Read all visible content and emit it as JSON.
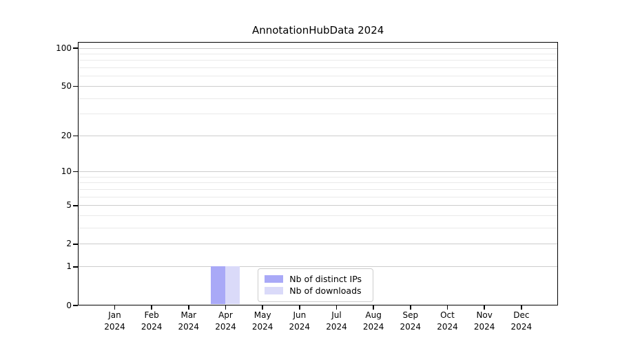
{
  "chart_data": {
    "type": "bar",
    "title": "AnnotationHubData 2024",
    "categories": [
      "Jan",
      "Feb",
      "Mar",
      "Apr",
      "May",
      "Jun",
      "Jul",
      "Aug",
      "Sep",
      "Oct",
      "Nov",
      "Dec"
    ],
    "x_year_label": "2024",
    "series": [
      {
        "name": "Nb of distinct IPs",
        "color": "#a9a9f7",
        "values": [
          0,
          0,
          0,
          1,
          0,
          0,
          0,
          0,
          0,
          0,
          0,
          0
        ]
      },
      {
        "name": "Nb of downloads",
        "color": "#dadaf9",
        "values": [
          0,
          0,
          0,
          1,
          0,
          0,
          0,
          0,
          0,
          0,
          0,
          0
        ]
      }
    ],
    "yscale": "log1p",
    "ylim": [
      0,
      112
    ],
    "yticks": [
      0,
      1,
      2,
      5,
      10,
      20,
      50,
      100
    ],
    "ytick_labels": [
      "0",
      "1",
      "2",
      "5",
      "10",
      "20",
      "50",
      "100"
    ],
    "minor_gridlines": [
      3,
      4,
      6,
      7,
      8,
      9,
      30,
      40,
      60,
      70,
      80,
      90
    ],
    "grid": "horizontal-only",
    "legend": {
      "position": "lower center",
      "entries": [
        "Nb of distinct IPs",
        "Nb of downloads"
      ]
    },
    "colors": {
      "background": "#ffffff",
      "axis": "#000000",
      "major_grid": "#cccccc",
      "minor_grid": "#e9e9e9",
      "legend_border": "#cccccc",
      "text": "#000000"
    }
  }
}
